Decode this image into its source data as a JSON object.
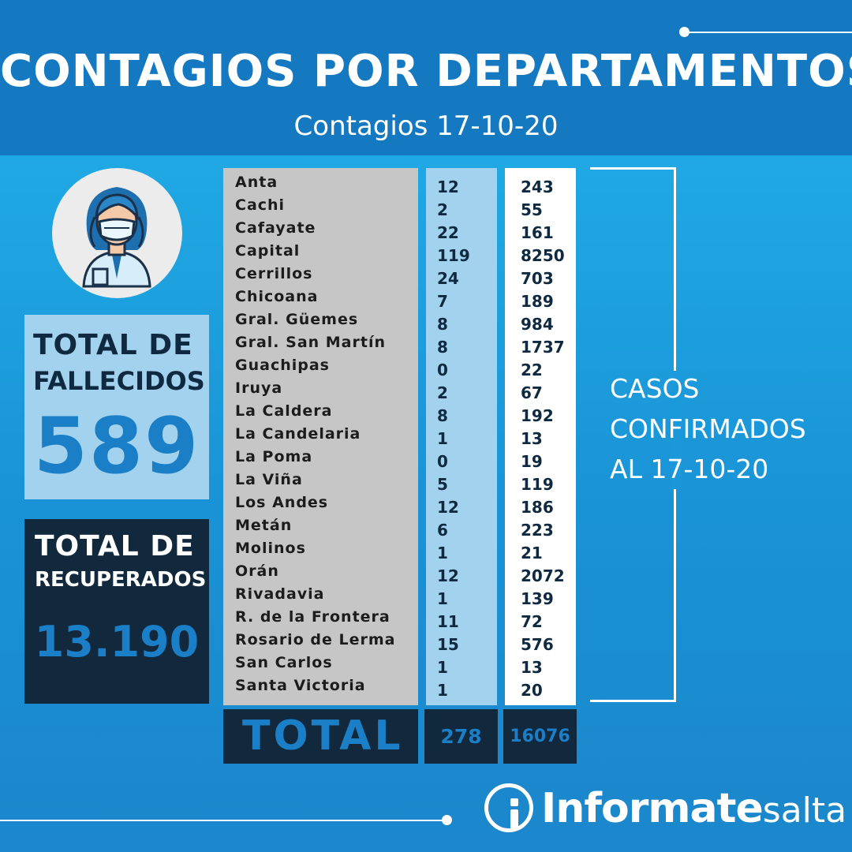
{
  "header": {
    "title": "CONTAGIOS POR DEPARTAMENTOS",
    "subtitle": "Contagios 17-10-20"
  },
  "avatar": {
    "icon": "nurse-mask-icon"
  },
  "fallecidos": {
    "title_line1": "TOTAL DE",
    "title_line2": "FALLECIDOS",
    "value": "589"
  },
  "recuperados": {
    "title_line1": "TOTAL DE",
    "title_line2": "RECUPERADOS",
    "value": "13.190"
  },
  "departments": [
    {
      "name": "Anta",
      "col2": "12",
      "col3": "243"
    },
    {
      "name": "Cachi",
      "col2": "2",
      "col3": "55"
    },
    {
      "name": "Cafayate",
      "col2": "22",
      "col3": "161"
    },
    {
      "name": "Capital",
      "col2": "119",
      "col3": "8250"
    },
    {
      "name": "Cerrillos",
      "col2": "24",
      "col3": "703"
    },
    {
      "name": "Chicoana",
      "col2": "7",
      "col3": "189"
    },
    {
      "name": "Gral. Güemes",
      "col2": "8",
      "col3": "984"
    },
    {
      "name": "Gral. San Martín",
      "col2": "8",
      "col3": "1737"
    },
    {
      "name": "Guachipas",
      "col2": "0",
      "col3": "22"
    },
    {
      "name": "Iruya",
      "col2": "2",
      "col3": "67"
    },
    {
      "name": "La Caldera",
      "col2": "8",
      "col3": "192"
    },
    {
      "name": "La Candelaria",
      "col2": "1",
      "col3": "13"
    },
    {
      "name": "La Poma",
      "col2": "0",
      "col3": "19"
    },
    {
      "name": "La Viña",
      "col2": "5",
      "col3": "119"
    },
    {
      "name": "Los Andes",
      "col2": "12",
      "col3": "186"
    },
    {
      "name": "Metán",
      "col2": "6",
      "col3": "223"
    },
    {
      "name": "Molinos",
      "col2": "1",
      "col3": "21"
    },
    {
      "name": "Orán",
      "col2": "12",
      "col3": "2072"
    },
    {
      "name": "Rivadavia",
      "col2": "1",
      "col3": "139"
    },
    {
      "name": "R. de la Frontera",
      "col2": "11",
      "col3": "72"
    },
    {
      "name": "Rosario de Lerma",
      "col2": "15",
      "col3": "576"
    },
    {
      "name": "San Carlos",
      "col2": "1",
      "col3": "13"
    },
    {
      "name": "Santa Victoria",
      "col2": "1",
      "col3": "20"
    }
  ],
  "totals": {
    "label": "TOTAL",
    "col2": "278",
    "col3": "16076"
  },
  "casos": {
    "line1": "CASOS",
    "line2": "CONFIRMADOS",
    "line3": "AL 17-10-20"
  },
  "brand": {
    "logo_icon": "info-i-icon",
    "name_bold": "Informate",
    "name_light": "salta"
  },
  "colors": {
    "header_bg": "#1479c0",
    "body_bg": "#1fa9e4",
    "dark_navy": "#11283d",
    "light_blue": "#a3d2ef",
    "accent_blue": "#1a7fc6",
    "names_gray": "#c6c6c6"
  }
}
